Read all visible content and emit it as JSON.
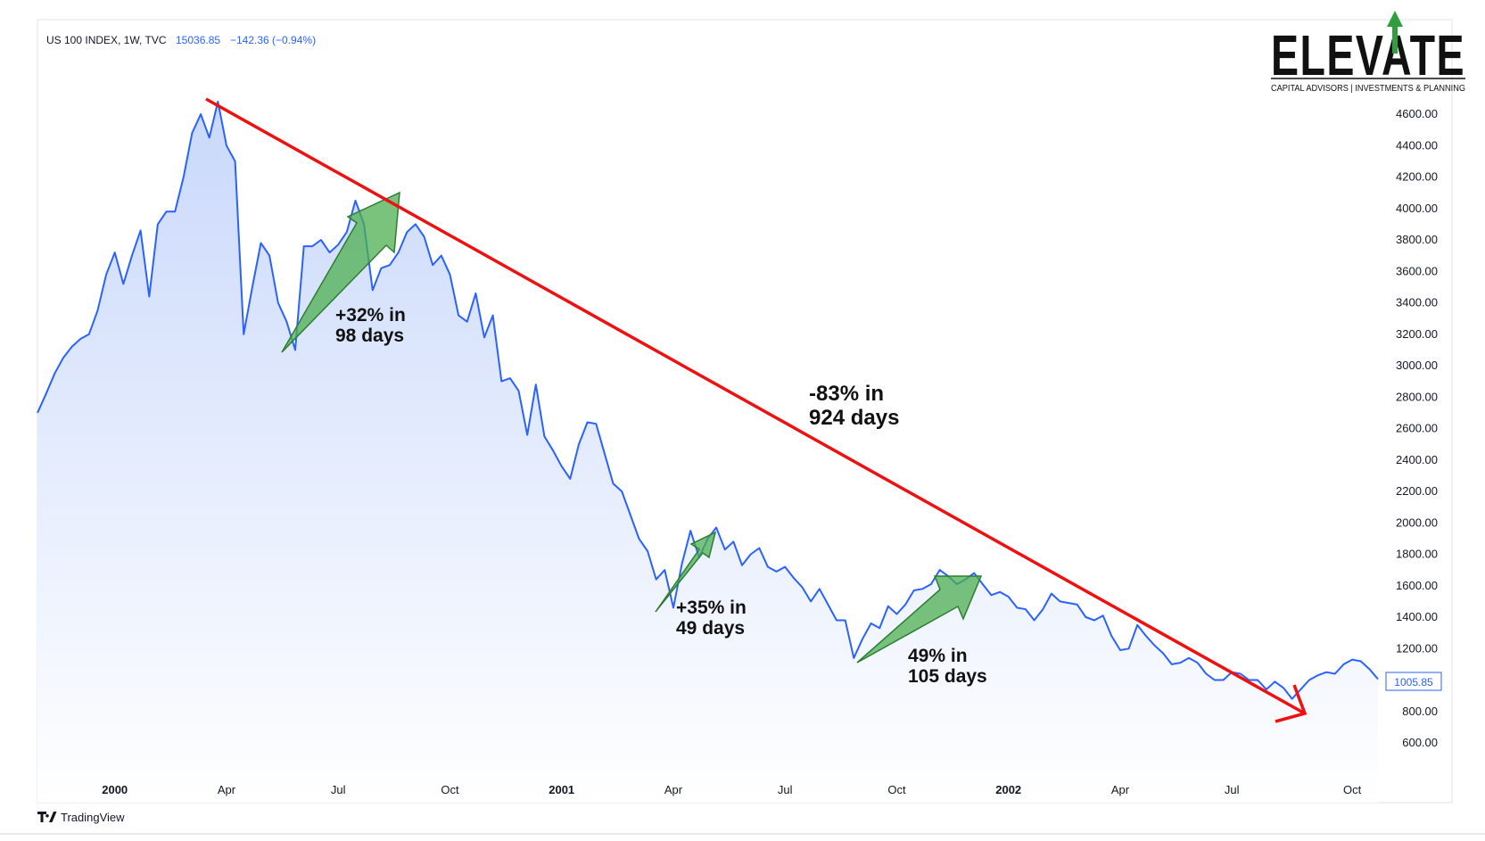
{
  "legend": {
    "symbol": "US 100 INDEX, 1W, TVC",
    "last": "15036.85",
    "change": "−142.36 (−0.94%)"
  },
  "logo": {
    "title": "ELEVATE",
    "subtitle": "CAPITAL ADVISORS | INVESTMENTS & PLANNING"
  },
  "brand": "TradingView",
  "price_label": "1005.85",
  "annotations": {
    "rally1_line1": "+32% in",
    "rally1_line2": "98 days",
    "rally2_line1": "+35% in",
    "rally2_line2": "49 days",
    "rally3_line1": "49% in",
    "rally3_line2": "105 days",
    "decline_line1": "-83% in",
    "decline_line2": "924 days"
  },
  "colors": {
    "line": "#2962ff",
    "area_top": "#c9d8fb",
    "area_bottom": "#ffffff",
    "trend_arrow": "#ee1111",
    "rally_arrow": "#4caf50"
  },
  "chart_data": {
    "type": "area",
    "ylim": [
      500,
      4900
    ],
    "y_ticks": [
      "600.00",
      "800.00",
      "1000.00",
      "1200.00",
      "1400.00",
      "1600.00",
      "1800.00",
      "2000.00",
      "2200.00",
      "2400.00",
      "2600.00",
      "2800.00",
      "3000.00",
      "3200.00",
      "3400.00",
      "3600.00",
      "3800.00",
      "4000.00",
      "4200.00",
      "4400.00",
      "4600.00"
    ],
    "x_ticks": [
      {
        "label": "2000",
        "week": 9,
        "bold": true
      },
      {
        "label": "Apr",
        "week": 22,
        "bold": false
      },
      {
        "label": "Jul",
        "week": 35,
        "bold": false
      },
      {
        "label": "Oct",
        "week": 48,
        "bold": false
      },
      {
        "label": "2001",
        "week": 61,
        "bold": true
      },
      {
        "label": "Apr",
        "week": 74,
        "bold": false
      },
      {
        "label": "Jul",
        "week": 87,
        "bold": false
      },
      {
        "label": "Oct",
        "week": 100,
        "bold": false
      },
      {
        "label": "2002",
        "week": 113,
        "bold": true
      },
      {
        "label": "Apr",
        "week": 126,
        "bold": false
      },
      {
        "label": "Jul",
        "week": 139,
        "bold": false
      },
      {
        "label": "Oct",
        "week": 153,
        "bold": false
      }
    ],
    "series": [
      {
        "values": [
          2700,
          2820,
          2950,
          3050,
          3120,
          3170,
          3200,
          3350,
          3580,
          3720,
          3520,
          3700,
          3860,
          3440,
          3900,
          3980,
          3980,
          4200,
          4480,
          4600,
          4450,
          4680,
          4400,
          4300,
          3200,
          3500,
          3780,
          3700,
          3400,
          3280,
          3100,
          3760,
          3760,
          3800,
          3720,
          3770,
          3850,
          4050,
          3900,
          3480,
          3620,
          3640,
          3720,
          3850,
          3900,
          3820,
          3640,
          3700,
          3580,
          3320,
          3280,
          3460,
          3180,
          3320,
          2900,
          2920,
          2840,
          2560,
          2880,
          2550,
          2460,
          2360,
          2280,
          2500,
          2640,
          2630,
          2440,
          2250,
          2200,
          2050,
          1900,
          1820,
          1640,
          1700,
          1460,
          1740,
          1950,
          1780,
          1900,
          1970,
          1830,
          1880,
          1730,
          1800,
          1840,
          1720,
          1690,
          1720,
          1650,
          1590,
          1500,
          1580,
          1480,
          1380,
          1380,
          1140,
          1260,
          1360,
          1330,
          1470,
          1420,
          1480,
          1570,
          1580,
          1610,
          1700,
          1660,
          1610,
          1640,
          1680,
          1610,
          1540,
          1560,
          1530,
          1460,
          1450,
          1380,
          1450,
          1550,
          1500,
          1490,
          1480,
          1400,
          1380,
          1410,
          1280,
          1190,
          1200,
          1350,
          1280,
          1220,
          1170,
          1100,
          1110,
          1140,
          1110,
          1040,
          1000,
          1000,
          1050,
          1040,
          1000,
          1000,
          940,
          990,
          950,
          880,
          940,
          1000,
          1030,
          1050,
          1040,
          1100,
          1130,
          1120,
          1070,
          1005.85
        ]
      }
    ]
  }
}
